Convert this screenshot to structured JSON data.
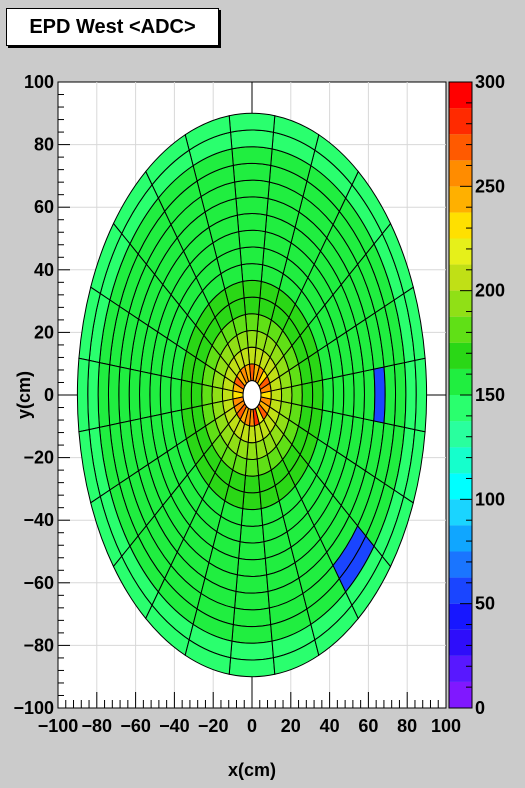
{
  "chart_data": {
    "type": "heatmap",
    "title": "EPD West <ADC>",
    "xlabel": "x(cm)",
    "ylabel": "y(cm)",
    "xlim": [
      -100,
      100
    ],
    "ylim": [
      -100,
      100
    ],
    "x_ticks": [
      "−100",
      "−80",
      "−60",
      "−40",
      "−20",
      "0",
      "20",
      "40",
      "60",
      "80",
      "100"
    ],
    "y_ticks": [
      "100",
      "80",
      "60",
      "40",
      "20",
      "0",
      "−20",
      "−40",
      "−60",
      "−80",
      "−100"
    ],
    "color_scale": {
      "range": [
        0,
        300
      ],
      "ticks": [
        "0",
        "50",
        "100",
        "150",
        "200",
        "250",
        "300"
      ],
      "colors": [
        "#8018ff",
        "#5818ff",
        "#2e0dfa",
        "#1717ff",
        "#1a45ff",
        "#1a75ff",
        "#10a6ff",
        "#1ad4ff",
        "#00ffff",
        "#15ffcc",
        "#29ff9e",
        "#2aff6e",
        "#20ee40",
        "#2ad716",
        "#60e016",
        "#90e016",
        "#c0e016",
        "#e6f01a",
        "#ffe000",
        "#ffb000",
        "#ff8c00",
        "#ff5a00",
        "#ff2a00",
        "#ff0000"
      ]
    },
    "detector": {
      "radius_inner_cm": 4.6,
      "radius_outer_cm": 90,
      "rings": 16,
      "sectors_per_ring": 24,
      "default_adc": 150,
      "inner_ring_adc": [
        255,
        275,
        220,
        270,
        240,
        262,
        230,
        250,
        268,
        235,
        258,
        245,
        272,
        238,
        256,
        248,
        265,
        242,
        230,
        260,
        250,
        266,
        238,
        254
      ],
      "ring_adc": [
        260,
        205,
        190,
        180,
        172,
        165,
        160,
        157,
        155,
        153,
        152,
        151,
        150,
        150,
        149,
        148
      ],
      "low_tiles": [
        {
          "ring": 11,
          "phi_deg": -3.75,
          "adc": 55
        },
        {
          "ring": 12,
          "phi_deg": -48.75,
          "adc": 55
        },
        {
          "ring": 13,
          "phi_deg": -41.25,
          "adc": 55
        }
      ]
    }
  }
}
